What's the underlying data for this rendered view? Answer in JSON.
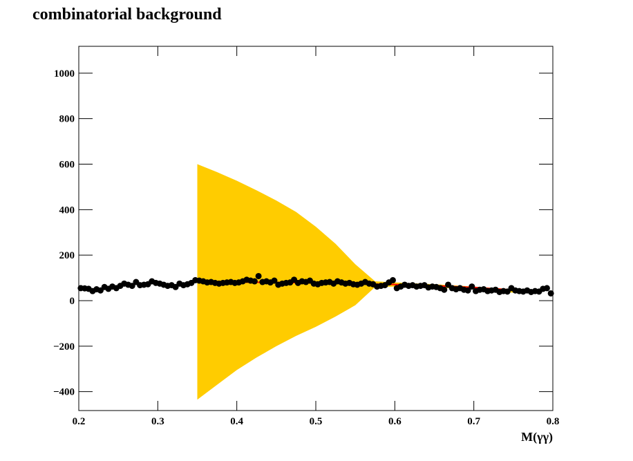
{
  "chart_data": {
    "type": "scatter",
    "title": "combinatorial background",
    "x_label": "M(γγ)",
    "xlim": [
      0.2,
      0.8
    ],
    "ylim": [
      -483,
      1118
    ],
    "xticks": [
      0.2,
      0.3,
      0.4,
      0.5,
      0.6,
      0.7,
      0.8
    ],
    "yticks": [
      {
        "value": -400,
        "label": "−400"
      },
      {
        "value": -200,
        "label": "−200"
      },
      0,
      200,
      400,
      600,
      800,
      1000
    ],
    "band": {
      "color": "#ffcc00",
      "x": [
        0.35,
        0.375,
        0.4,
        0.425,
        0.45,
        0.475,
        0.5,
        0.525,
        0.55,
        0.575,
        0.6,
        0.65,
        0.7,
        0.75,
        0.76
      ],
      "upper": [
        600,
        565,
        527,
        485,
        440,
        390,
        325,
        250,
        160,
        85,
        80,
        72,
        62,
        50,
        45
      ],
      "lower": [
        -435,
        -370,
        -305,
        -250,
        -200,
        -155,
        -115,
        -70,
        -20,
        60,
        62,
        58,
        50,
        35,
        35
      ]
    },
    "fit": {
      "color": "#ff0000",
      "x": [
        0.35,
        0.375,
        0.4,
        0.425,
        0.45,
        0.475,
        0.5,
        0.525,
        0.55,
        0.575,
        0.6,
        0.65,
        0.7,
        0.75,
        0.76
      ],
      "values": [
        82,
        82,
        81,
        81,
        80,
        79,
        78,
        77,
        75,
        73,
        71,
        66,
        58,
        47,
        45
      ]
    },
    "series": [
      {
        "color": "#000000",
        "x": [
          0.2025,
          0.2075,
          0.2125,
          0.2175,
          0.2225,
          0.2275,
          0.2325,
          0.2375,
          0.2425,
          0.2475,
          0.2525,
          0.2575,
          0.2625,
          0.2675,
          0.2725,
          0.2775,
          0.2825,
          0.2875,
          0.2925,
          0.2975,
          0.3025,
          0.3075,
          0.3125,
          0.3175,
          0.3225,
          0.3275,
          0.3325,
          0.3375,
          0.3425,
          0.3475,
          0.3525,
          0.3575,
          0.3625,
          0.3675,
          0.3725,
          0.3775,
          0.3825,
          0.3875,
          0.3925,
          0.3975,
          0.4025,
          0.4075,
          0.4125,
          0.4175,
          0.4225,
          0.4275,
          0.4325,
          0.4375,
          0.4425,
          0.4475,
          0.4525,
          0.4575,
          0.4625,
          0.4675,
          0.4725,
          0.4775,
          0.4825,
          0.4875,
          0.4925,
          0.4975,
          0.5025,
          0.5075,
          0.5125,
          0.5175,
          0.5225,
          0.5275,
          0.5325,
          0.5375,
          0.5425,
          0.5475,
          0.5525,
          0.5575,
          0.5625,
          0.5675,
          0.5725,
          0.5775,
          0.5825,
          0.5875,
          0.5925,
          0.5975,
          0.6025,
          0.6075,
          0.6125,
          0.6175,
          0.6225,
          0.6275,
          0.6325,
          0.6375,
          0.6425,
          0.6475,
          0.6525,
          0.6575,
          0.6625,
          0.6675,
          0.6725,
          0.6775,
          0.6825,
          0.6875,
          0.6925,
          0.6975,
          0.7025,
          0.7075,
          0.7125,
          0.7175,
          0.7225,
          0.7275,
          0.7325,
          0.7375,
          0.7425,
          0.7475,
          0.7525,
          0.7575,
          0.7625,
          0.7675,
          0.7725,
          0.7775,
          0.7825,
          0.7875,
          0.7925,
          0.7975
        ],
        "values": [
          55,
          54,
          52,
          42,
          50,
          45,
          60,
          52,
          62,
          55,
          65,
          75,
          70,
          65,
          82,
          68,
          70,
          72,
          85,
          78,
          75,
          70,
          65,
          68,
          60,
          75,
          68,
          72,
          78,
          90,
          88,
          85,
          80,
          82,
          78,
          75,
          78,
          80,
          82,
          78,
          80,
          85,
          92,
          88,
          85,
          108,
          82,
          85,
          80,
          88,
          70,
          75,
          78,
          80,
          92,
          78,
          85,
          82,
          88,
          75,
          72,
          78,
          80,
          82,
          75,
          85,
          80,
          75,
          78,
          72,
          70,
          75,
          82,
          75,
          72,
          62,
          65,
          68,
          80,
          90,
          55,
          62,
          70,
          65,
          68,
          62,
          65,
          68,
          58,
          62,
          60,
          55,
          48,
          70,
          55,
          50,
          55,
          48,
          45,
          62,
          42,
          48,
          50,
          42,
          45,
          48,
          38,
          42,
          40,
          55,
          45,
          42,
          40,
          45,
          38,
          42,
          40,
          52,
          55,
          32
        ]
      }
    ]
  }
}
